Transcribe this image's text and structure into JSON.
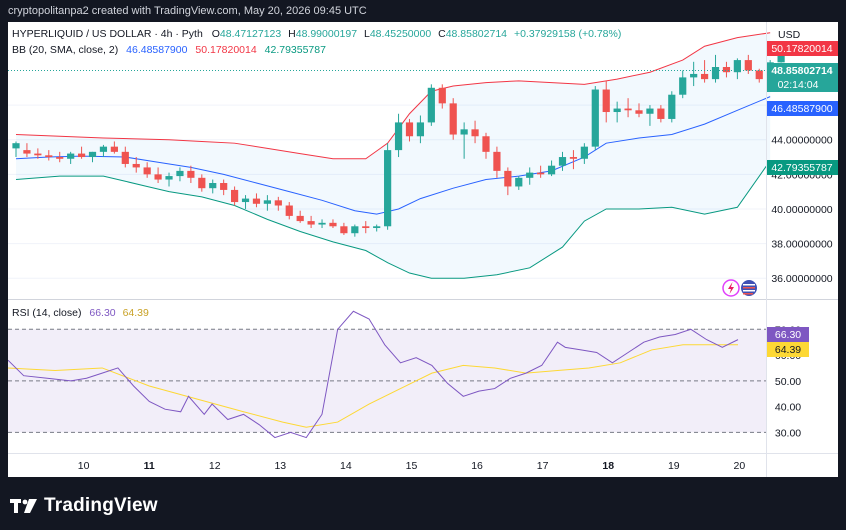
{
  "header": {
    "caption": "cryptopolitanpa2 created with TradingView.com, May 20, 2026 09:45 UTC"
  },
  "legend": {
    "symbol": "HYPERLIQUID / US DOLLAR · 4h · Pyth",
    "open_label": "O",
    "open": "48.47127123",
    "high_label": "H",
    "high": "48.99000197",
    "low_label": "L",
    "low": "48.45250000",
    "close_label": "C",
    "close": "48.85802714",
    "change": "+0.37929158 (+0.78%)",
    "bb_label": "BB (20, SMA, close, 2)",
    "bb_basis": "46.48587900",
    "bb_upper": "50.17820014",
    "bb_lower": "42.79355787",
    "rsi_label": "RSI (14, close)",
    "rsi_value": "66.30",
    "rsi_ma": "64.39"
  },
  "axis": {
    "currency": "USD",
    "countdown": "02:14:04",
    "price_label_texts": [
      "50.17820014",
      "48.85802714",
      "46.48587900",
      "42.79355787"
    ],
    "rsi_label_texts": [
      "66.30",
      "64.39"
    ]
  },
  "colors": {
    "up": "#26a69a",
    "down": "#ef5350",
    "basis": "#2962ff",
    "upper": "#f23645",
    "lower": "#089981",
    "rsi": "#7e57c2",
    "rsi_ma": "#fdd835"
  },
  "footer": {
    "brand": "TradingView"
  },
  "chart_data": [
    {
      "type": "candlestick",
      "title": "HYPERLIQUID / US DOLLAR · 4h · Pyth",
      "ylim": [
        34.8,
        50.8
      ],
      "y_ticks": [
        "36.00000000",
        "38.00000000",
        "40.00000000",
        "42.00000000",
        "44.00000000",
        "46.00000000"
      ],
      "x_ticks": [
        {
          "label": "10",
          "index": 6
        },
        {
          "label": "11",
          "index": 12
        },
        {
          "label": "12",
          "index": 18
        },
        {
          "label": "13",
          "index": 24
        },
        {
          "label": "14",
          "index": 30
        },
        {
          "label": "15",
          "index": 36
        },
        {
          "label": "16",
          "index": 42
        },
        {
          "label": "17",
          "index": 48
        },
        {
          "label": "18",
          "index": 54
        },
        {
          "label": "19",
          "index": 60
        },
        {
          "label": "20",
          "index": 66
        }
      ],
      "ohlc": [
        [
          43.5,
          43.9,
          43.0,
          43.8
        ],
        [
          43.4,
          43.8,
          43.0,
          43.2
        ],
        [
          43.2,
          43.5,
          42.9,
          43.1
        ],
        [
          43.1,
          43.4,
          42.8,
          43.0
        ],
        [
          43.0,
          43.3,
          42.7,
          42.9
        ],
        [
          42.9,
          43.3,
          42.6,
          43.2
        ],
        [
          43.2,
          43.6,
          42.9,
          43.0
        ],
        [
          43.0,
          43.3,
          42.7,
          43.3
        ],
        [
          43.3,
          43.7,
          43.0,
          43.6
        ],
        [
          43.6,
          43.9,
          43.2,
          43.3
        ],
        [
          43.3,
          43.6,
          42.4,
          42.6
        ],
        [
          42.6,
          43.0,
          42.1,
          42.4
        ],
        [
          42.4,
          42.7,
          41.8,
          42.0
        ],
        [
          42.0,
          42.4,
          41.5,
          41.7
        ],
        [
          41.7,
          42.1,
          41.3,
          41.9
        ],
        [
          41.9,
          42.4,
          41.6,
          42.2
        ],
        [
          42.2,
          42.5,
          41.5,
          41.8
        ],
        [
          41.8,
          42.0,
          41.0,
          41.2
        ],
        [
          41.2,
          41.7,
          40.9,
          41.5
        ],
        [
          41.5,
          41.7,
          40.8,
          41.1
        ],
        [
          41.1,
          41.3,
          40.2,
          40.4
        ],
        [
          40.4,
          40.8,
          40.0,
          40.6
        ],
        [
          40.6,
          40.9,
          40.1,
          40.3
        ],
        [
          40.3,
          40.8,
          39.9,
          40.5
        ],
        [
          40.5,
          40.7,
          39.9,
          40.2
        ],
        [
          40.2,
          40.4,
          39.4,
          39.6
        ],
        [
          39.6,
          39.9,
          39.2,
          39.3
        ],
        [
          39.3,
          39.6,
          38.9,
          39.1
        ],
        [
          39.1,
          39.4,
          38.9,
          39.2
        ],
        [
          39.2,
          39.4,
          38.9,
          39.0
        ],
        [
          39.0,
          39.2,
          38.5,
          38.6
        ],
        [
          38.6,
          39.1,
          38.4,
          39.0
        ],
        [
          39.0,
          39.3,
          38.6,
          38.9
        ],
        [
          38.9,
          39.1,
          38.7,
          39.0
        ],
        [
          39.0,
          43.8,
          38.8,
          43.4
        ],
        [
          43.4,
          45.5,
          43.0,
          45.0
        ],
        [
          45.0,
          45.2,
          43.9,
          44.2
        ],
        [
          44.2,
          45.4,
          43.8,
          45.0
        ],
        [
          45.0,
          47.2,
          44.8,
          47.0
        ],
        [
          47.0,
          47.2,
          45.8,
          46.1
        ],
        [
          46.1,
          46.4,
          44.0,
          44.3
        ],
        [
          44.3,
          45.0,
          42.9,
          44.6
        ],
        [
          44.6,
          45.1,
          43.8,
          44.2
        ],
        [
          44.2,
          44.4,
          42.9,
          43.3
        ],
        [
          43.3,
          43.6,
          41.8,
          42.2
        ],
        [
          42.2,
          42.4,
          40.8,
          41.3
        ],
        [
          41.3,
          41.9,
          41.1,
          41.8
        ],
        [
          41.8,
          42.4,
          41.4,
          42.1
        ],
        [
          42.1,
          42.5,
          41.8,
          42.0
        ],
        [
          42.0,
          42.8,
          41.9,
          42.5
        ],
        [
          42.5,
          43.3,
          42.2,
          43.0
        ],
        [
          43.0,
          43.4,
          42.3,
          42.9
        ],
        [
          42.9,
          43.8,
          42.6,
          43.6
        ],
        [
          43.6,
          47.1,
          43.4,
          46.9
        ],
        [
          46.9,
          47.4,
          45.0,
          45.6
        ],
        [
          45.6,
          46.2,
          45.0,
          45.8
        ],
        [
          45.8,
          46.4,
          45.3,
          45.7
        ],
        [
          45.7,
          46.1,
          45.3,
          45.5
        ],
        [
          45.5,
          46.0,
          44.8,
          45.8
        ],
        [
          45.8,
          46.0,
          45.0,
          45.2
        ],
        [
          45.2,
          46.8,
          45.0,
          46.6
        ],
        [
          46.6,
          48.0,
          46.4,
          47.6
        ],
        [
          47.6,
          48.5,
          47.1,
          47.8
        ],
        [
          47.8,
          48.6,
          47.3,
          47.5
        ],
        [
          47.5,
          48.9,
          47.3,
          48.2
        ],
        [
          48.2,
          48.5,
          47.6,
          47.9
        ],
        [
          47.9,
          48.7,
          47.5,
          48.6
        ],
        [
          48.6,
          48.9,
          47.8,
          48.0
        ],
        [
          48.0,
          48.1,
          47.3,
          47.5
        ],
        [
          47.5,
          48.6,
          47.3,
          48.47
        ],
        [
          48.47,
          48.99,
          48.45,
          48.86
        ]
      ],
      "bb_basis": [
        [
          0,
          42.9
        ],
        [
          3,
          43.0
        ],
        [
          6,
          43.05
        ],
        [
          10,
          43.0
        ],
        [
          13,
          42.7
        ],
        [
          16,
          42.4
        ],
        [
          19,
          42.0
        ],
        [
          22,
          41.5
        ],
        [
          25,
          41.0
        ],
        [
          28,
          40.5
        ],
        [
          31,
          39.9
        ],
        [
          33,
          39.7
        ],
        [
          35,
          40.0
        ],
        [
          37,
          40.6
        ],
        [
          40,
          41.2
        ],
        [
          43,
          41.7
        ],
        [
          46,
          41.9
        ],
        [
          49,
          42.2
        ],
        [
          52,
          43.0
        ],
        [
          54,
          43.8
        ],
        [
          57,
          44.1
        ],
        [
          60,
          44.3
        ],
        [
          63,
          44.9
        ],
        [
          66,
          45.7
        ],
        [
          69,
          46.49
        ]
      ],
      "bb_upper": [
        [
          0,
          44.3
        ],
        [
          4,
          44.2
        ],
        [
          8,
          44.1
        ],
        [
          11,
          44.05
        ],
        [
          14,
          44.0
        ],
        [
          17,
          43.9
        ],
        [
          20,
          43.8
        ],
        [
          23,
          43.5
        ],
        [
          26,
          43.2
        ],
        [
          29,
          42.9
        ],
        [
          32,
          42.9
        ],
        [
          34,
          43.8
        ],
        [
          36,
          45.5
        ],
        [
          38,
          46.8
        ],
        [
          40,
          47.1
        ],
        [
          43,
          47.3
        ],
        [
          46,
          47.4
        ],
        [
          49,
          47.3
        ],
        [
          52,
          47.2
        ],
        [
          55,
          47.5
        ],
        [
          58,
          47.9
        ],
        [
          61,
          48.6
        ],
        [
          63,
          49.4
        ],
        [
          66,
          49.9
        ],
        [
          69,
          50.18
        ]
      ],
      "bb_lower": [
        [
          0,
          41.7
        ],
        [
          4,
          41.9
        ],
        [
          8,
          41.9
        ],
        [
          10,
          41.6
        ],
        [
          12,
          41.3
        ],
        [
          14,
          41.0
        ],
        [
          17,
          40.7
        ],
        [
          20,
          40.2
        ],
        [
          23,
          39.4
        ],
        [
          26,
          38.7
        ],
        [
          29,
          38.1
        ],
        [
          32,
          37.6
        ],
        [
          34,
          36.9
        ],
        [
          36,
          36.3
        ],
        [
          38,
          36.0
        ],
        [
          41,
          36.0
        ],
        [
          44,
          36.2
        ],
        [
          47,
          36.6
        ],
        [
          50,
          37.8
        ],
        [
          52,
          39.3
        ],
        [
          54,
          40.0
        ],
        [
          57,
          40.0
        ],
        [
          60,
          40.1
        ],
        [
          63,
          39.7
        ],
        [
          66,
          40.1
        ],
        [
          69,
          42.79
        ]
      ]
    },
    {
      "type": "line",
      "title": "RSI (14, close)",
      "ylim": [
        22,
        74
      ],
      "y_ticks": [
        30,
        40,
        50,
        60,
        70
      ],
      "bands": {
        "upper": 70,
        "middle": 50,
        "lower": 30
      },
      "series": [
        {
          "name": "RSI",
          "values": [
            [
              0,
              58
            ],
            [
              2,
              52
            ],
            [
              5,
              51
            ],
            [
              8,
              50
            ],
            [
              10,
              51
            ],
            [
              12,
              53
            ],
            [
              14,
              55
            ],
            [
              16,
              48
            ],
            [
              18,
              42
            ],
            [
              20,
              39
            ],
            [
              22,
              38
            ],
            [
              23,
              44
            ],
            [
              25,
              37
            ],
            [
              26,
              41
            ],
            [
              28,
              35
            ],
            [
              30,
              37
            ],
            [
              32,
              33
            ],
            [
              34,
              28
            ],
            [
              36,
              30
            ],
            [
              38,
              28
            ],
            [
              40,
              37
            ],
            [
              42,
              70
            ],
            [
              44,
              77
            ],
            [
              46,
              74
            ],
            [
              48,
              64
            ],
            [
              50,
              57
            ],
            [
              52,
              59
            ],
            [
              54,
              56
            ],
            [
              56,
              49
            ],
            [
              58,
              44
            ],
            [
              60,
              46
            ],
            [
              62,
              47
            ],
            [
              64,
              51
            ],
            [
              66,
              53
            ],
            [
              68,
              56
            ],
            [
              70,
              65
            ],
            [
              71,
              63
            ],
            [
              73,
              62
            ],
            [
              75,
              61
            ],
            [
              77,
              57
            ],
            [
              79,
              61
            ],
            [
              81,
              65
            ],
            [
              83,
              67
            ],
            [
              85,
              68
            ],
            [
              87,
              70
            ],
            [
              89,
              66
            ],
            [
              91,
              63
            ],
            [
              93,
              66
            ]
          ]
        },
        {
          "name": "RSI-based MA",
          "values": [
            [
              0,
              55
            ],
            [
              6,
              54
            ],
            [
              12,
              55
            ],
            [
              18,
              48
            ],
            [
              24,
              43
            ],
            [
              30,
              38
            ],
            [
              35,
              34
            ],
            [
              38,
              32
            ],
            [
              42,
              34
            ],
            [
              46,
              41
            ],
            [
              50,
              47
            ],
            [
              54,
              53
            ],
            [
              58,
              56
            ],
            [
              62,
              55
            ],
            [
              66,
              53
            ],
            [
              70,
              54
            ],
            [
              74,
              55
            ],
            [
              78,
              57
            ],
            [
              82,
              62
            ],
            [
              86,
              64
            ],
            [
              90,
              64
            ],
            [
              93,
              64
            ]
          ]
        }
      ]
    }
  ]
}
